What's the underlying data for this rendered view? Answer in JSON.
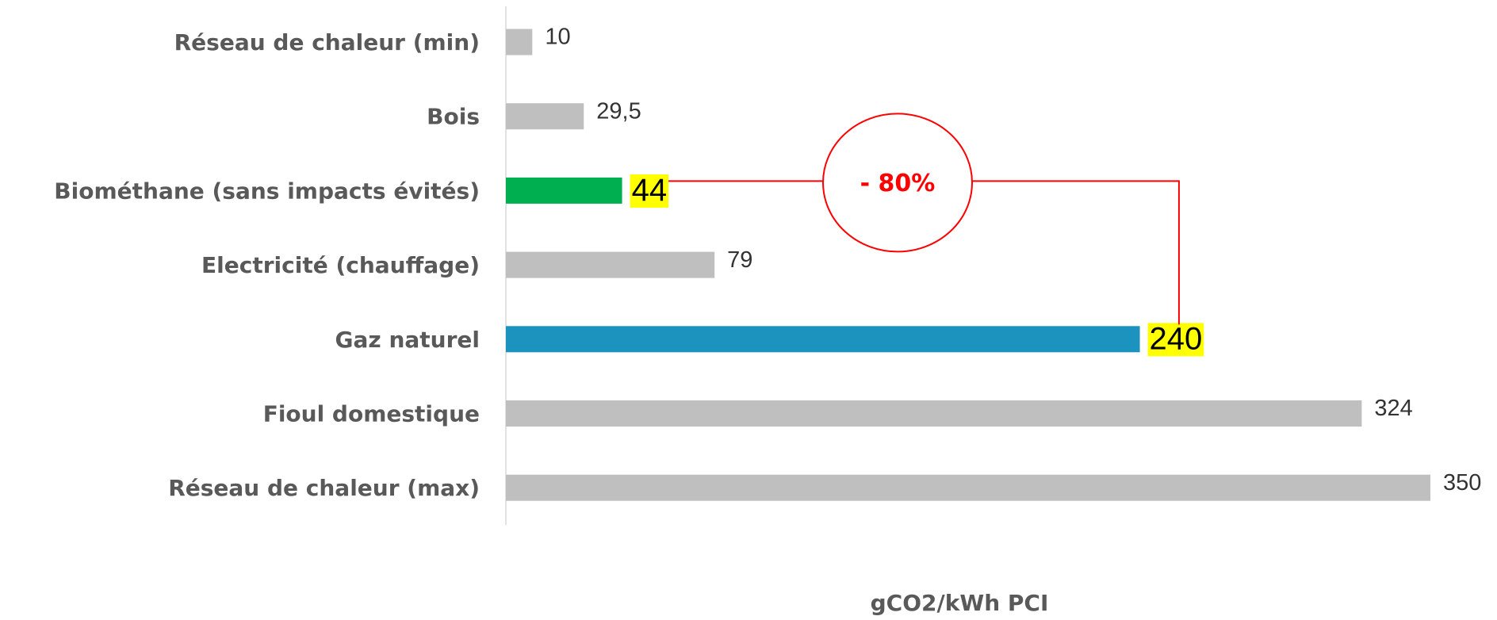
{
  "chart_data": {
    "type": "bar",
    "orientation": "horizontal",
    "categories": [
      "Réseau de chaleur (min)",
      "Bois",
      "Biométhane (sans impacts évités)",
      "Electricité (chauffage)",
      "Gaz naturel",
      "Fioul domestique",
      "Réseau de chaleur (max)"
    ],
    "values": [
      10,
      29.5,
      44,
      79,
      240,
      324,
      350
    ],
    "value_labels": [
      "10",
      "29,5",
      "44",
      "79",
      "240",
      "324",
      "350"
    ],
    "colors": [
      "#bfbfbf",
      "#bfbfbf",
      "#00b050",
      "#bfbfbf",
      "#1b93be",
      "#bfbfbf",
      "#bfbfbf"
    ],
    "label_highlight": [
      false,
      false,
      true,
      false,
      true,
      false,
      false
    ],
    "highlight_color": "#ffff00",
    "xlim": [
      0,
      350
    ],
    "xlabel": "gCO2/kWh PCI",
    "annotation": "- 80%",
    "annotation_color": "#ff0000"
  }
}
